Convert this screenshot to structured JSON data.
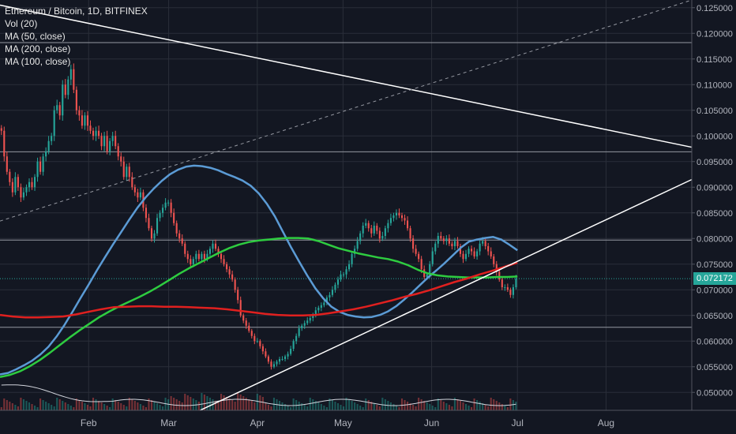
{
  "legend": {
    "symbol": "Ethereum / Bitcoin, 1D, BITFINEX",
    "vol": "Vol (20)",
    "ma50": "MA (50, close)",
    "ma200": "MA (200, close)",
    "ma100": "MA (100, close)"
  },
  "last_price": "0.072172",
  "colors": {
    "background": "#131722",
    "up_candle": "#26a69a",
    "down_candle": "#ef5350",
    "ma50": "#5b9bd5",
    "ma100": "#2ecc40",
    "ma200": "#e0201f",
    "trendline": "#ffffff",
    "price_tag": "#26a69a"
  },
  "chart_data": {
    "type": "candlestick",
    "title": "Ethereum / Bitcoin, 1D, BITFINEX",
    "x_ticks": [
      "Feb",
      "Mar",
      "Apr",
      "May",
      "Jun",
      "Jul",
      "Aug"
    ],
    "x_tick_days": [
      31,
      59,
      90,
      120,
      151,
      181,
      212
    ],
    "xlim_days": [
      0,
      242
    ],
    "y_ticks": [
      "0.125000",
      "0.120000",
      "0.115000",
      "0.110000",
      "0.105000",
      "0.100000",
      "0.095000",
      "0.090000",
      "0.085000",
      "0.080000",
      "0.075000",
      "0.070000",
      "0.065000",
      "0.060000",
      "0.055000",
      "0.050000"
    ],
    "ylim": [
      0.0465,
      0.1265
    ],
    "grid": true,
    "legend_position": "top-left",
    "candles_close": [
      0.101,
      0.096,
      0.093,
      0.091,
      0.089,
      0.092,
      0.09,
      0.088,
      0.089,
      0.09,
      0.091,
      0.09,
      0.092,
      0.095,
      0.093,
      0.096,
      0.097,
      0.099,
      0.1,
      0.105,
      0.106,
      0.104,
      0.11,
      0.108,
      0.111,
      0.113,
      0.109,
      0.105,
      0.104,
      0.102,
      0.104,
      0.102,
      0.101,
      0.1,
      0.101,
      0.1,
      0.098,
      0.1,
      0.097,
      0.099,
      0.1,
      0.098,
      0.096,
      0.095,
      0.092,
      0.094,
      0.092,
      0.09,
      0.089,
      0.088,
      0.089,
      0.086,
      0.084,
      0.082,
      0.08,
      0.081,
      0.084,
      0.085,
      0.086,
      0.087,
      0.087,
      0.085,
      0.083,
      0.081,
      0.08,
      0.079,
      0.077,
      0.076,
      0.075,
      0.076,
      0.077,
      0.076,
      0.077,
      0.076,
      0.077,
      0.078,
      0.079,
      0.078,
      0.077,
      0.076,
      0.075,
      0.074,
      0.073,
      0.072,
      0.07,
      0.068,
      0.065,
      0.064,
      0.063,
      0.062,
      0.061,
      0.06,
      0.06,
      0.059,
      0.058,
      0.057,
      0.056,
      0.055,
      0.0555,
      0.056,
      0.0565,
      0.0565,
      0.057,
      0.0575,
      0.0585,
      0.06,
      0.061,
      0.0625,
      0.063,
      0.0635,
      0.064,
      0.0645,
      0.065,
      0.066,
      0.0665,
      0.067,
      0.0675,
      0.0685,
      0.069,
      0.07,
      0.071,
      0.072,
      0.073,
      0.073,
      0.074,
      0.075,
      0.077,
      0.078,
      0.0795,
      0.081,
      0.0825,
      0.083,
      0.082,
      0.081,
      0.0825,
      0.0815,
      0.08,
      0.0805,
      0.082,
      0.083,
      0.084,
      0.0845,
      0.085,
      0.0845,
      0.084,
      0.0835,
      0.082,
      0.08,
      0.078,
      0.077,
      0.076,
      0.074,
      0.0725,
      0.073,
      0.075,
      0.0775,
      0.079,
      0.0805,
      0.08,
      0.0795,
      0.08,
      0.079,
      0.0785,
      0.0795,
      0.0785,
      0.077,
      0.076,
      0.077,
      0.078,
      0.0775,
      0.0765,
      0.0775,
      0.079,
      0.0795,
      0.0785,
      0.0775,
      0.0765,
      0.075,
      0.0735,
      0.072,
      0.0705,
      0.0705,
      0.07,
      0.069,
      0.0705,
      0.0722
    ],
    "ma50": [
      0.0535,
      0.0538,
      0.0545,
      0.0553,
      0.0562,
      0.0574,
      0.0589,
      0.0609,
      0.0632,
      0.0658,
      0.0685,
      0.0711,
      0.0738,
      0.0764,
      0.0789,
      0.0813,
      0.0837,
      0.086,
      0.088,
      0.0897,
      0.0912,
      0.0925,
      0.0934,
      0.094,
      0.0942,
      0.0941,
      0.0938,
      0.0933,
      0.0926,
      0.092,
      0.0913,
      0.0903,
      0.0888,
      0.0868,
      0.0843,
      0.0813,
      0.0783,
      0.0755,
      0.0728,
      0.0703,
      0.0683,
      0.0667,
      0.0657,
      0.0651,
      0.0648,
      0.0646,
      0.0647,
      0.0651,
      0.0658,
      0.0668,
      0.0681,
      0.0695,
      0.071,
      0.0725,
      0.0738,
      0.0752,
      0.0767,
      0.0782,
      0.0794,
      0.0798,
      0.0801,
      0.0803,
      0.0798,
      0.0788,
      0.0777
    ],
    "ma100": [
      0.053,
      0.0534,
      0.0541,
      0.0551,
      0.0563,
      0.0577,
      0.0592,
      0.0607,
      0.0621,
      0.0634,
      0.0647,
      0.0658,
      0.0668,
      0.0677,
      0.0686,
      0.0696,
      0.0707,
      0.0719,
      0.0731,
      0.0742,
      0.0752,
      0.0762,
      0.0772,
      0.0781,
      0.0788,
      0.0793,
      0.0796,
      0.0798,
      0.08,
      0.0801,
      0.0801,
      0.08,
      0.0795,
      0.0788,
      0.0781,
      0.0776,
      0.0771,
      0.0767,
      0.0763,
      0.076,
      0.0755,
      0.0748,
      0.0739,
      0.0732,
      0.0728,
      0.0726,
      0.0725,
      0.0724,
      0.0724,
      0.0724,
      0.0725,
      0.0725,
      0.0726
    ],
    "ma200": [
      0.0651,
      0.0648,
      0.0646,
      0.0646,
      0.0647,
      0.0648,
      0.0652,
      0.0657,
      0.0662,
      0.0666,
      0.0667,
      0.0668,
      0.0668,
      0.0667,
      0.0667,
      0.0666,
      0.0665,
      0.0664,
      0.0662,
      0.0659,
      0.0656,
      0.0653,
      0.0651,
      0.065,
      0.065,
      0.0651,
      0.0654,
      0.0658,
      0.0662,
      0.0667,
      0.0673,
      0.0679,
      0.0686,
      0.0692,
      0.0699,
      0.0707,
      0.0715,
      0.0722,
      0.073,
      0.0737,
      0.0745,
      0.0753
    ],
    "trendlines": [
      {
        "from": [
          0,
          0.1255
        ],
        "to": [
          242,
          0.0978
        ],
        "style": "solid"
      },
      {
        "from": [
          70,
          0.0465
        ],
        "to": [
          242,
          0.0915
        ],
        "style": "solid"
      },
      {
        "from": [
          0,
          0.0834
        ],
        "to": [
          242,
          0.1265
        ],
        "style": "dashed"
      }
    ],
    "horizontal_levels": [
      0.1182,
      0.0969,
      0.0797,
      0.0627
    ],
    "last_price": 0.072172
  }
}
